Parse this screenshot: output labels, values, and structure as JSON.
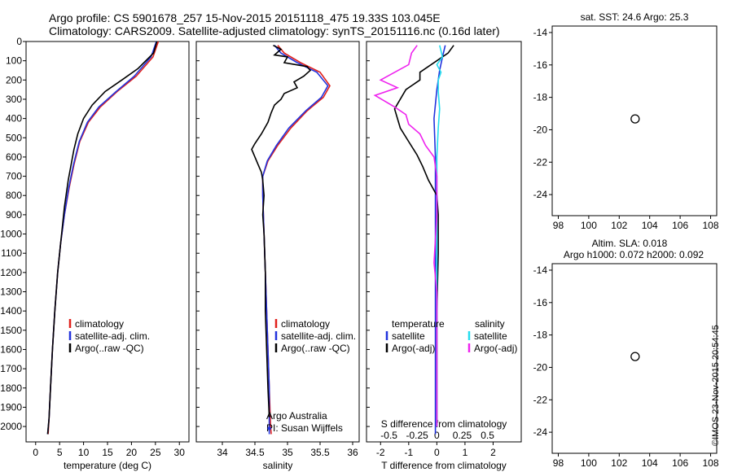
{
  "header": {
    "title_line1": "Argo profile: CS 5901678_257 15-Nov-2015 20151118_475 19.33S 103.045E",
    "title_line2": "Climatology: CARS2009. Satellite-adjusted climatology: synTS_20151116.nc (0.16d later)"
  },
  "footer": {
    "stamp": "©IMOS 23-Nov-2015 20:54:45"
  },
  "colors": {
    "climatology": "#e0201c",
    "satellite": "#2233dd",
    "argo": "#000000",
    "satellite_salinity": "#22ddee",
    "argo_salinity": "#ee22ee"
  },
  "chart_data": [
    {
      "type": "line",
      "xlabel": "temperature (deg C)",
      "ylabel": "",
      "xlim": [
        -2,
        32
      ],
      "ylim": [
        2080,
        0
      ],
      "xticks": [
        0,
        5,
        10,
        15,
        20,
        25,
        30
      ],
      "yticks": [
        0,
        100,
        200,
        300,
        400,
        500,
        600,
        700,
        800,
        900,
        1000,
        1100,
        1200,
        1300,
        1400,
        1500,
        1600,
        1700,
        1800,
        1900,
        2000
      ],
      "legend": [
        "climatology",
        "satellite-adj. clim.",
        "Argo(..raw -QC)"
      ],
      "series": [
        {
          "name": "climatology",
          "points": [
            [
              25.6,
              0
            ],
            [
              24.5,
              80
            ],
            [
              21,
              180
            ],
            [
              17,
              260
            ],
            [
              13.5,
              340
            ],
            [
              11,
              420
            ],
            [
              9.2,
              520
            ],
            [
              8,
              640
            ],
            [
              7,
              760
            ],
            [
              6,
              900
            ],
            [
              5.2,
              1050
            ],
            [
              4.6,
              1200
            ],
            [
              4,
              1400
            ],
            [
              3.5,
              1600
            ],
            [
              3.1,
              1800
            ],
            [
              2.8,
              1960
            ],
            [
              2.6,
              2040
            ]
          ]
        },
        {
          "name": "satellite-adj. clim.",
          "points": [
            [
              25.2,
              0
            ],
            [
              24.1,
              80
            ],
            [
              20.6,
              180
            ],
            [
              16.8,
              260
            ],
            [
              13.2,
              340
            ],
            [
              10.8,
              420
            ],
            [
              9.1,
              520
            ],
            [
              7.9,
              640
            ],
            [
              6.9,
              760
            ],
            [
              6,
              900
            ],
            [
              5.2,
              1050
            ],
            [
              4.6,
              1200
            ],
            [
              4,
              1400
            ],
            [
              3.5,
              1600
            ],
            [
              3.1,
              1800
            ],
            [
              2.8,
              1960
            ],
            [
              2.5,
              2040
            ]
          ]
        },
        {
          "name": "Argo(..raw -QC)",
          "points": [
            [
              25.3,
              0
            ],
            [
              24.6,
              60
            ],
            [
              21.4,
              140
            ],
            [
              18,
              200
            ],
            [
              14.5,
              260
            ],
            [
              11.8,
              330
            ],
            [
              10,
              400
            ],
            [
              8.8,
              480
            ],
            [
              8,
              560
            ],
            [
              7.4,
              640
            ],
            [
              6.8,
              720
            ],
            [
              6,
              860
            ],
            [
              5.2,
              1050
            ],
            [
              4.6,
              1200
            ],
            [
              4,
              1400
            ],
            [
              3.5,
              1600
            ],
            [
              3.1,
              1800
            ],
            [
              2.8,
              1960
            ],
            [
              2.5,
              2040
            ]
          ]
        }
      ]
    },
    {
      "type": "line",
      "xlabel": "salinity",
      "xlim": [
        33.6,
        36.1
      ],
      "ylim": [
        2080,
        0
      ],
      "xticks": [
        34,
        34.5,
        35,
        35.5,
        36
      ],
      "legend": [
        "climatology",
        "satellite-adj. clim.",
        "Argo(..raw -QC)"
      ],
      "annotation": [
        "Argo Australia",
        "PI: Susan Wijffels"
      ],
      "series": [
        {
          "name": "climatology",
          "points": [
            [
              34.85,
              20
            ],
            [
              34.95,
              60
            ],
            [
              35.2,
              110
            ],
            [
              35.5,
              160
            ],
            [
              35.65,
              230
            ],
            [
              35.55,
              290
            ],
            [
              35.3,
              360
            ],
            [
              35.05,
              450
            ],
            [
              34.85,
              540
            ],
            [
              34.7,
              620
            ],
            [
              34.62,
              700
            ],
            [
              34.62,
              800
            ],
            [
              34.64,
              1000
            ],
            [
              34.66,
              1200
            ],
            [
              34.68,
              1400
            ],
            [
              34.7,
              1600
            ],
            [
              34.72,
              1800
            ],
            [
              34.74,
              2000
            ],
            [
              34.75,
              2040
            ]
          ]
        },
        {
          "name": "satellite-adj. clim.",
          "points": [
            [
              34.8,
              20
            ],
            [
              34.9,
              60
            ],
            [
              35.15,
              110
            ],
            [
              35.45,
              160
            ],
            [
              35.62,
              230
            ],
            [
              35.52,
              290
            ],
            [
              35.28,
              360
            ],
            [
              35.02,
              450
            ],
            [
              34.83,
              540
            ],
            [
              34.69,
              620
            ],
            [
              34.62,
              700
            ],
            [
              34.62,
              800
            ],
            [
              34.64,
              1000
            ],
            [
              34.66,
              1200
            ],
            [
              34.68,
              1400
            ],
            [
              34.7,
              1600
            ],
            [
              34.72,
              1800
            ],
            [
              34.72,
              2000
            ],
            [
              34.72,
              2040
            ]
          ]
        },
        {
          "name": "Argo(..raw -QC)",
          "points": [
            [
              34.78,
              20
            ],
            [
              34.9,
              40
            ],
            [
              34.8,
              70
            ],
            [
              35.0,
              80
            ],
            [
              34.95,
              110
            ],
            [
              35.3,
              130
            ],
            [
              35.35,
              150
            ],
            [
              35.25,
              180
            ],
            [
              35.1,
              210
            ],
            [
              35.15,
              240
            ],
            [
              34.95,
              270
            ],
            [
              34.9,
              300
            ],
            [
              34.8,
              330
            ],
            [
              34.75,
              370
            ],
            [
              34.7,
              420
            ],
            [
              34.6,
              480
            ],
            [
              34.5,
              530
            ],
            [
              34.45,
              560
            ],
            [
              34.5,
              600
            ],
            [
              34.55,
              640
            ],
            [
              34.6,
              680
            ],
            [
              34.62,
              720
            ],
            [
              34.64,
              800
            ],
            [
              34.62,
              900
            ],
            [
              34.64,
              1000
            ],
            [
              34.66,
              1200
            ],
            [
              34.66,
              1400
            ],
            [
              34.68,
              1600
            ],
            [
              34.7,
              1800
            ],
            [
              34.72,
              1950
            ]
          ]
        }
      ]
    },
    {
      "type": "line",
      "xlabel": "T difference from climatology",
      "x2label": "S difference from climatology",
      "xlim": [
        -2.5,
        3
      ],
      "ylim": [
        2080,
        0
      ],
      "xticks": [
        -2,
        -1,
        0,
        1,
        2
      ],
      "x2ticks_labels": [
        "-0.5",
        "-0.25",
        "0",
        "0.25",
        "0.5"
      ],
      "legend_titles": [
        "temperature",
        "salinity"
      ],
      "legend": [
        "satellite",
        "Argo(-adj)",
        "satellite",
        "Argo(-adj)"
      ],
      "series": [
        {
          "name": "temperature satellite",
          "points": [
            [
              0.3,
              20
            ],
            [
              0.2,
              80
            ],
            [
              0.1,
              150
            ],
            [
              0,
              250
            ],
            [
              -0.1,
              400
            ],
            [
              -0.05,
              600
            ],
            [
              -0.05,
              900
            ],
            [
              -0.05,
              1200
            ],
            [
              -0.05,
              1600
            ],
            [
              -0.05,
              2000
            ],
            [
              -0.05,
              2040
            ]
          ]
        },
        {
          "name": "temperature Argo(-adj)",
          "points": [
            [
              0.6,
              20
            ],
            [
              0.4,
              60
            ],
            [
              -0.6,
              160
            ],
            [
              -0.6,
              200
            ],
            [
              -1.1,
              250
            ],
            [
              -1.5,
              350
            ],
            [
              -1.4,
              400
            ],
            [
              -1.3,
              450
            ],
            [
              -1.0,
              520
            ],
            [
              -0.7,
              590
            ],
            [
              -0.5,
              650
            ],
            [
              -0.3,
              720
            ],
            [
              0,
              800
            ],
            [
              0.05,
              900
            ],
            [
              0.05,
              1100
            ],
            [
              0,
              1400
            ],
            [
              0,
              1700
            ],
            [
              0,
              2000
            ]
          ]
        },
        {
          "name": "salinity satellite",
          "points": [
            [
              0.1,
              20
            ],
            [
              0.2,
              80
            ],
            [
              0,
              120
            ],
            [
              0.15,
              160
            ],
            [
              0.05,
              200
            ],
            [
              0.05,
              260
            ],
            [
              0.1,
              350
            ],
            [
              0.05,
              450
            ],
            [
              0,
              600
            ],
            [
              0,
              900
            ],
            [
              0,
              1300
            ],
            [
              0,
              1700
            ],
            [
              0,
              2000
            ]
          ]
        },
        {
          "name": "salinity Argo(-adj)",
          "points": [
            [
              -0.7,
              20
            ],
            [
              -0.9,
              60
            ],
            [
              -1.0,
              120
            ],
            [
              -2.0,
              200
            ],
            [
              -1.4,
              240
            ],
            [
              -2.2,
              280
            ],
            [
              -1.5,
              340
            ],
            [
              -1.1,
              380
            ],
            [
              -1.0,
              430
            ],
            [
              -0.6,
              480
            ],
            [
              -0.4,
              540
            ],
            [
              -0.1,
              600
            ],
            [
              0,
              700
            ],
            [
              0,
              900
            ],
            [
              -0.1,
              1150
            ],
            [
              0,
              1300
            ],
            [
              0,
              1600
            ],
            [
              0,
              2000
            ]
          ]
        }
      ]
    },
    {
      "type": "heatmap",
      "title": "sat. SST: 24.6  Argo: 25.3",
      "xlim": [
        97.6,
        108.4
      ],
      "ylim": [
        -25.3,
        -13.6
      ],
      "xticks": [
        98,
        100,
        102,
        104,
        106,
        108
      ],
      "yticks": [
        -14,
        -16,
        -18,
        -20,
        -22,
        -24
      ],
      "marker": [
        103.045,
        -19.33
      ]
    },
    {
      "type": "heatmap",
      "title": "Altim. SLA: 0.018",
      "subtitle": "Argo h1000: 0.072 h2000: 0.092",
      "xlim": [
        97.6,
        108.4
      ],
      "ylim": [
        -25.3,
        -13.6
      ],
      "xticks": [
        98,
        100,
        102,
        104,
        106,
        108
      ],
      "yticks": [
        -14,
        -16,
        -18,
        -20,
        -22,
        -24
      ],
      "marker": [
        103.045,
        -19.33
      ]
    }
  ]
}
